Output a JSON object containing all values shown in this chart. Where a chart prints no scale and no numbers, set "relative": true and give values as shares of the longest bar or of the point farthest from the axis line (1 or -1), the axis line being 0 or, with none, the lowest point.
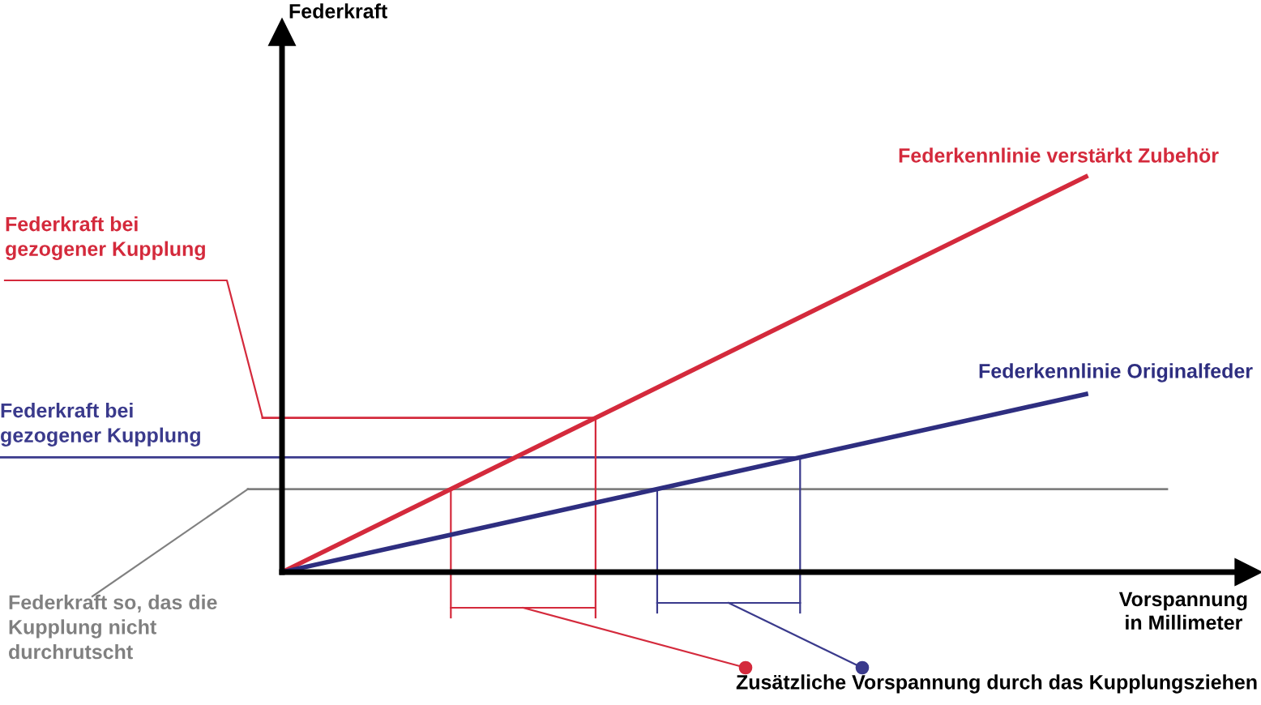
{
  "chart_data": {
    "type": "line",
    "relative": true,
    "xlabel": "Vorspannung\nin Millimeter",
    "categories": [
      null,
      null
    ],
    "series": [
      {
        "name": "Federkennlinie verstärkt Zubehör",
        "color": "#d42a3c",
        "values": [
          0,
          1
        ]
      },
      {
        "name": "Federkennlinie Originalfeder",
        "color": "#2e2e80",
        "values": [
          0,
          0.45
        ]
      }
    ],
    "ref_lines": [
      {
        "axis": "y",
        "value": 0.39,
        "label": "Federkraft bei\ngezogener Kupplung",
        "color": "#d42a3c"
      },
      {
        "axis": "y",
        "value": 0.29,
        "label": "Federkraft bei\ngezogener Kupplung",
        "color": "#3a3a8c"
      },
      {
        "axis": "y",
        "value": 0.21,
        "label": "Federkraft so, das die\nKupplung nicht\ndurchrutscht",
        "color": "#808080"
      }
    ],
    "annotations": [
      "Federkraft",
      "Zusätzliche Vorspannung durch das Kupplungsziehen"
    ],
    "legend": false
  }
}
